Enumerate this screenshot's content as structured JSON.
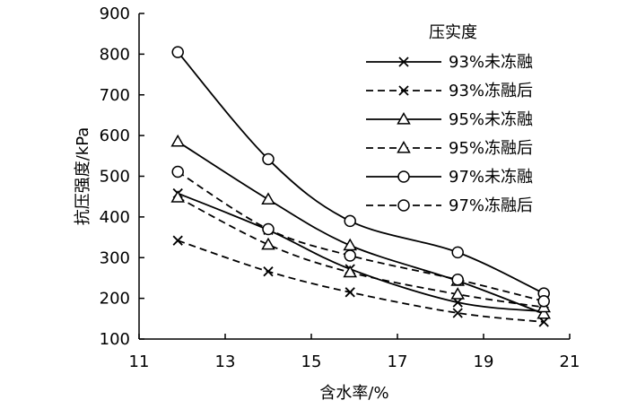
{
  "chart_data": {
    "type": "line",
    "xlabel": "含水率/%",
    "ylabel": "抗压强度/kPa",
    "xlim": [
      11,
      21
    ],
    "ylim": [
      100,
      900
    ],
    "xticks": [
      11,
      13,
      15,
      17,
      19,
      21
    ],
    "yticks": [
      100,
      200,
      300,
      400,
      500,
      600,
      700,
      800,
      900
    ],
    "grid": false,
    "legend_title": "压实度",
    "legend_position": "top-right",
    "x": [
      11.9,
      14.0,
      15.9,
      18.4,
      20.4
    ],
    "series": [
      {
        "name": "93%未冻融",
        "marker": "x",
        "dash": "solid",
        "values": [
          458,
          368,
          272,
          190,
          168
        ]
      },
      {
        "name": "93%冻融后",
        "marker": "x",
        "dash": "dashed",
        "values": [
          342,
          266,
          215,
          164,
          142
        ]
      },
      {
        "name": "95%未冻融",
        "marker": "triangle",
        "dash": "solid",
        "values": [
          585,
          443,
          330,
          243,
          162
        ]
      },
      {
        "name": "95%冻融后",
        "marker": "triangle",
        "dash": "dashed",
        "values": [
          448,
          332,
          264,
          210,
          178
        ]
      },
      {
        "name": "97%未冻融",
        "marker": "circle",
        "dash": "solid",
        "values": [
          805,
          542,
          390,
          313,
          212
        ]
      },
      {
        "name": "97%冻融后",
        "marker": "circle",
        "dash": "dashed",
        "values": [
          511,
          370,
          305,
          246,
          193
        ]
      }
    ]
  }
}
